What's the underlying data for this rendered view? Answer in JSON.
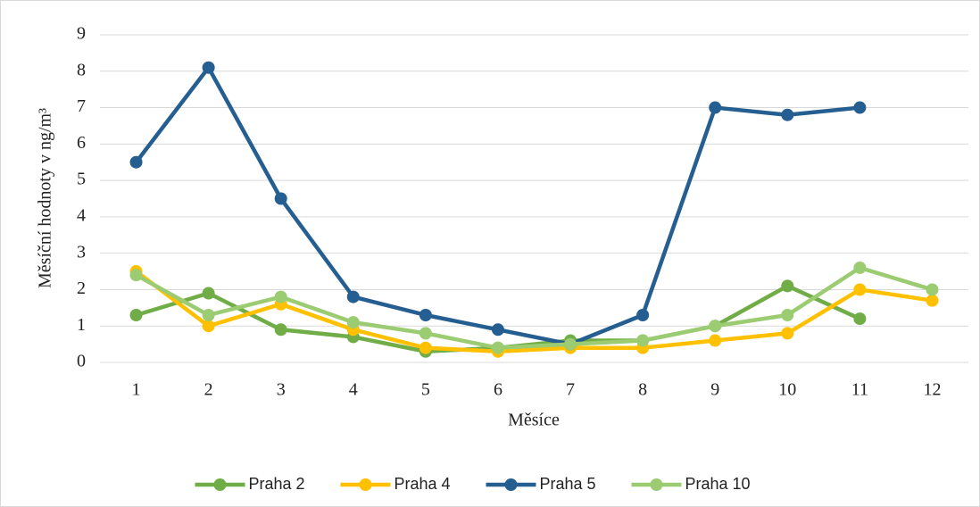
{
  "chart_data": {
    "type": "line",
    "y_label": "Měsíční hodnoty v ng/m³",
    "x_label": "Měsíce",
    "categories": [
      "1",
      "2",
      "3",
      "4",
      "5",
      "6",
      "7",
      "8",
      "9",
      "10",
      "11",
      "12"
    ],
    "series": [
      {
        "name": "Praha 2",
        "color": "#70ad47",
        "values": [
          1.3,
          1.9,
          0.9,
          0.7,
          0.3,
          0.4,
          0.6,
          0.6,
          1.0,
          2.1,
          1.2,
          null
        ]
      },
      {
        "name": "Praha 4",
        "color": "#ffc000",
        "values": [
          2.5,
          1.0,
          1.6,
          0.9,
          0.4,
          0.3,
          0.4,
          0.4,
          0.6,
          0.8,
          2.0,
          1.7
        ]
      },
      {
        "name": "Praha 5",
        "color": "#255e91",
        "values": [
          5.5,
          8.1,
          4.5,
          1.8,
          1.3,
          0.9,
          0.5,
          1.3,
          7.0,
          6.8,
          7.0,
          null
        ]
      },
      {
        "name": "Praha 10",
        "color": "#9bcc72",
        "values": [
          2.4,
          1.3,
          1.8,
          1.1,
          0.8,
          0.4,
          0.5,
          0.6,
          1.0,
          1.3,
          2.6,
          2.0
        ]
      }
    ],
    "ylim": [
      0,
      9
    ],
    "yticks": [
      0,
      1,
      2,
      3,
      4,
      5,
      6,
      7,
      8,
      9
    ],
    "grid": true,
    "legend": "bottom"
  }
}
